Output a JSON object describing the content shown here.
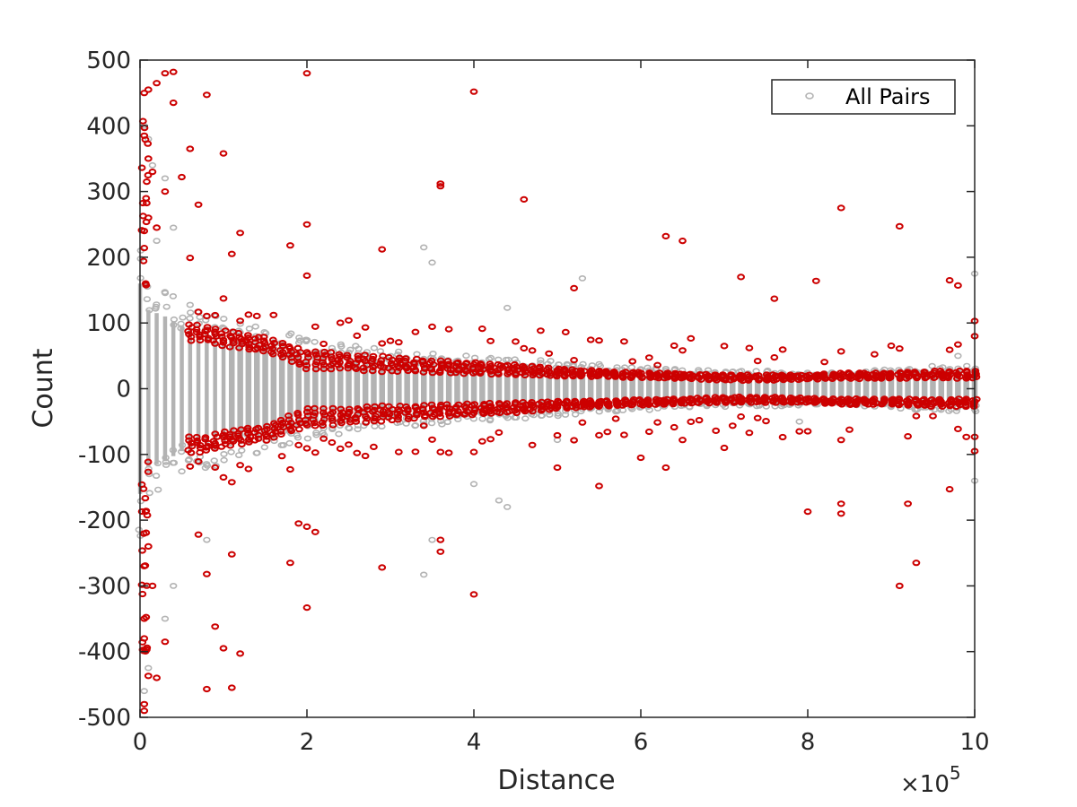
{
  "chart_data": {
    "type": "scatter",
    "title": "",
    "xlabel": "Distance",
    "ylabel": "Count",
    "x_exponent_label": "×10",
    "x_exponent_power": "5",
    "xlim": [
      0,
      10
    ],
    "ylim": [
      -500,
      500
    ],
    "x_scale_factor": "1e5",
    "grid": false,
    "box": true,
    "legend_position": "top-right",
    "xticks": [
      "0",
      "2",
      "4",
      "6",
      "8",
      "10"
    ],
    "yticks": [
      "500",
      "400",
      "300",
      "200",
      "100",
      "0",
      "-100",
      "-200",
      "-300",
      "-400",
      "-500"
    ],
    "colors": {
      "all_pairs": "#b3b3b3",
      "highlighted": "#cc0000",
      "axes": "#262626"
    },
    "series": [
      {
        "name": "All Pairs",
        "marker": "open-circle",
        "color": "#b3b3b3",
        "envelope": {
          "x": [
            0.0,
            0.1,
            0.2,
            0.3,
            0.5,
            0.8,
            1.0,
            1.5,
            2.0,
            2.5,
            3.0,
            3.5,
            4.0,
            4.5,
            5.0,
            5.5,
            6.0,
            6.5,
            7.0,
            7.5,
            8.0,
            8.5,
            9.0,
            9.5,
            10.0
          ],
          "halfwidth": [
            160,
            120,
            115,
            110,
            95,
            88,
            80,
            68,
            55,
            48,
            42,
            40,
            36,
            33,
            30,
            27,
            24,
            22,
            20,
            20,
            18,
            18,
            22,
            25,
            25
          ]
        },
        "outliers": [
          [
            0.05,
            400
          ],
          [
            0.1,
            380
          ],
          [
            0.15,
            340
          ],
          [
            0.3,
            320
          ],
          [
            0.4,
            245
          ],
          [
            0.2,
            225
          ],
          [
            3.4,
            215
          ],
          [
            3.5,
            192
          ],
          [
            5.3,
            168
          ],
          [
            4.4,
            123
          ],
          [
            0.05,
            -460
          ],
          [
            0.1,
            -425
          ],
          [
            0.3,
            -350
          ],
          [
            0.4,
            -300
          ],
          [
            0.8,
            -230
          ],
          [
            3.4,
            -283
          ],
          [
            3.5,
            -230
          ],
          [
            4.3,
            -170
          ],
          [
            4.4,
            -180
          ],
          [
            4.0,
            -145
          ],
          [
            5.0,
            -78
          ],
          [
            10.0,
            -140
          ],
          [
            10.0,
            175
          ],
          [
            9.8,
            50
          ],
          [
            7.9,
            -50
          ]
        ]
      },
      {
        "name": "",
        "marker": "open-circle",
        "color": "#cc0000",
        "band": {
          "x": [
            0.6,
            0.8,
            1.0,
            1.5,
            2.0,
            2.5,
            3.0,
            3.5,
            4.0,
            4.5,
            5.0,
            5.5,
            6.0,
            6.5,
            7.0,
            7.5,
            8.0,
            8.5,
            9.0,
            9.5,
            10.0
          ],
          "inner": [
            72,
            72,
            65,
            55,
            30,
            28,
            25,
            24,
            22,
            20,
            18,
            18,
            16,
            15,
            12,
            12,
            14,
            15,
            15,
            15,
            15
          ],
          "outer": [
            100,
            98,
            90,
            80,
            60,
            55,
            50,
            45,
            42,
            38,
            32,
            28,
            26,
            24,
            22,
            22,
            22,
            25,
            25,
            28,
            28
          ]
        },
        "outliers": [
          [
            0.05,
            450
          ],
          [
            0.1,
            455
          ],
          [
            0.2,
            465
          ],
          [
            0.3,
            480
          ],
          [
            0.4,
            482
          ],
          [
            0.4,
            435
          ],
          [
            0.8,
            447
          ],
          [
            2.0,
            480
          ],
          [
            4.0,
            452
          ],
          [
            0.6,
            365
          ],
          [
            1.0,
            358
          ],
          [
            0.05,
            385
          ],
          [
            0.1,
            350
          ],
          [
            0.15,
            330
          ],
          [
            0.3,
            300
          ],
          [
            0.5,
            322
          ],
          [
            0.7,
            280
          ],
          [
            3.6,
            312
          ],
          [
            3.6,
            308
          ],
          [
            4.6,
            288
          ],
          [
            8.4,
            275
          ],
          [
            6.3,
            232
          ],
          [
            6.5,
            225
          ],
          [
            9.1,
            247
          ],
          [
            2.0,
            250
          ],
          [
            2.9,
            212
          ],
          [
            1.2,
            237
          ],
          [
            1.8,
            218
          ],
          [
            0.6,
            199
          ],
          [
            1.1,
            205
          ],
          [
            2.0,
            172
          ],
          [
            5.2,
            153
          ],
          [
            7.2,
            170
          ],
          [
            7.6,
            137
          ],
          [
            8.1,
            164
          ],
          [
            9.7,
            165
          ],
          [
            9.8,
            157
          ],
          [
            10.0,
            103
          ],
          [
            0.2,
            245
          ],
          [
            0.1,
            260
          ],
          [
            0.05,
            240
          ],
          [
            0.05,
            -480
          ],
          [
            0.05,
            -490
          ],
          [
            0.1,
            -437
          ],
          [
            0.2,
            -440
          ],
          [
            0.3,
            -385
          ],
          [
            0.05,
            -380
          ],
          [
            0.05,
            -350
          ],
          [
            0.8,
            -457
          ],
          [
            1.1,
            -455
          ],
          [
            1.0,
            -395
          ],
          [
            1.2,
            -403
          ],
          [
            0.9,
            -362
          ],
          [
            2.0,
            -333
          ],
          [
            4.0,
            -313
          ],
          [
            2.9,
            -272
          ],
          [
            1.8,
            -265
          ],
          [
            0.8,
            -282
          ],
          [
            1.1,
            -252
          ],
          [
            3.6,
            -230
          ],
          [
            3.6,
            -248
          ],
          [
            0.7,
            -222
          ],
          [
            1.9,
            -205
          ],
          [
            2.0,
            -210
          ],
          [
            2.1,
            -218
          ],
          [
            9.1,
            -300
          ],
          [
            9.3,
            -265
          ],
          [
            9.2,
            -175
          ],
          [
            8.0,
            -187
          ],
          [
            8.4,
            -190
          ],
          [
            8.4,
            -175
          ],
          [
            6.3,
            -120
          ],
          [
            6.0,
            -105
          ],
          [
            5.0,
            -120
          ],
          [
            5.5,
            -148
          ],
          [
            7.0,
            -90
          ],
          [
            9.7,
            -153
          ],
          [
            10.0,
            -95
          ],
          [
            0.05,
            -270
          ],
          [
            0.1,
            -240
          ],
          [
            0.15,
            -300
          ]
        ]
      }
    ]
  },
  "legend": {
    "label": "All Pairs"
  }
}
